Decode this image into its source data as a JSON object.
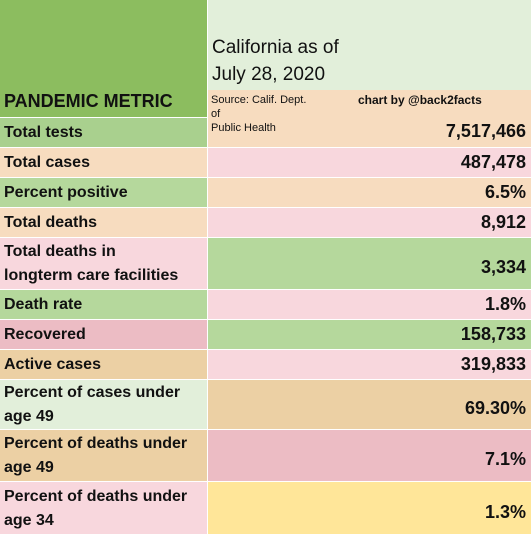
{
  "header": {
    "metric_label": "PANDEMIC METRIC",
    "title": [
      "California as of",
      "July 28, 2020"
    ],
    "source": [
      "Source: Calif. Dept.",
      "of",
      "Public Health"
    ],
    "credit": "chart by @back2facts"
  },
  "table": {
    "rows": [
      {
        "label": [
          "Total tests"
        ],
        "value": "7,517,466"
      },
      {
        "label": [
          "Total cases"
        ],
        "value": "487,478"
      },
      {
        "label": [
          "Percent positive"
        ],
        "value": "6.5%"
      },
      {
        "label": [
          "Total deaths"
        ],
        "value": "8,912"
      },
      {
        "label": [
          "Total deaths in",
          "longterm care facilities"
        ],
        "value": "3,334"
      },
      {
        "label": [
          "Death rate"
        ],
        "value": "1.8%"
      },
      {
        "label": [
          "Recovered"
        ],
        "value": "158,733"
      },
      {
        "label": [
          "Active cases"
        ],
        "value": "319,833"
      },
      {
        "label": [
          "Percent of cases under",
          "age 49"
        ],
        "value": "69.30%"
      },
      {
        "label": [
          "Percent of deaths under",
          "age 49"
        ],
        "value": "7.1%"
      },
      {
        "label": [
          "Percent of deaths under",
          "age 34"
        ],
        "value": "1.3%"
      }
    ]
  }
}
